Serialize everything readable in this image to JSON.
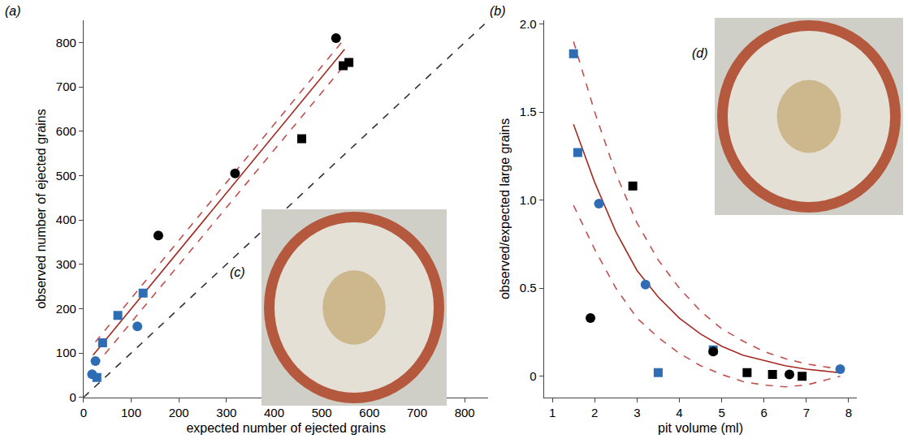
{
  "chart_data": [
    {
      "type": "scatter",
      "panel_label": "(a)",
      "inset_label": "(c)",
      "x_label": "expected number of ejected grains",
      "y_label": "observed number of ejected grains",
      "xlim": [
        0,
        850
      ],
      "ylim": [
        0,
        850
      ],
      "xticks": [
        0,
        100,
        200,
        300,
        400,
        500,
        600,
        700,
        800
      ],
      "yticks": [
        0,
        100,
        200,
        300,
        400,
        500,
        600,
        700,
        800
      ],
      "grid": false,
      "series": [
        {
          "type": "line",
          "line_style": "dashed",
          "color": "#333333",
          "x": [
            0,
            850
          ],
          "values": [
            0,
            850
          ]
        },
        {
          "type": "line",
          "line_style": "dashed",
          "color": "#c0504d",
          "x": [
            25,
            545
          ],
          "values": [
            125,
            805
          ]
        },
        {
          "type": "line",
          "line_style": "dashed",
          "color": "#c0504d",
          "x": [
            25,
            560
          ],
          "values": [
            72,
            765
          ]
        },
        {
          "type": "line",
          "line_style": "solid",
          "color": "#a52a22",
          "x": [
            20,
            548
          ],
          "values": [
            95,
            785
          ]
        },
        {
          "type": "scatter",
          "marker": "circle",
          "color": "#000000",
          "x": [
            157,
            318,
            530
          ],
          "values": [
            365,
            505,
            810
          ]
        },
        {
          "type": "scatter",
          "marker": "square",
          "color": "#000000",
          "x": [
            458,
            545,
            557
          ],
          "values": [
            583,
            748,
            755
          ]
        },
        {
          "type": "scatter",
          "marker": "circle",
          "color": "#2e6db4",
          "x": [
            18,
            25,
            113
          ],
          "values": [
            52,
            82,
            160
          ]
        },
        {
          "type": "scatter",
          "marker": "square",
          "color": "#2e6db4",
          "x": [
            28,
            40,
            72,
            125
          ],
          "values": [
            45,
            123,
            185,
            235
          ]
        }
      ]
    },
    {
      "type": "scatter",
      "panel_label": "(b)",
      "inset_label": "(d)",
      "x_label": "pit volume (ml)",
      "y_label": "observed/expected large grains",
      "xlim": [
        0.8,
        8.2
      ],
      "ylim": [
        -0.12,
        2.02
      ],
      "xticks": [
        1,
        2,
        3,
        4,
        5,
        6,
        7,
        8
      ],
      "yticks": [
        0,
        0.5,
        {
          "value": 1,
          "label": "1.0"
        },
        1.5,
        {
          "value": 2,
          "label": "2.0"
        }
      ],
      "grid": false,
      "series": [
        {
          "type": "line",
          "line_style": "dashed",
          "color": "#c0504d",
          "x": [
            1.5,
            2,
            2.5,
            3,
            3.5,
            4,
            4.5,
            5,
            5.5,
            6,
            6.5,
            7,
            7.8
          ],
          "values": [
            1.9,
            1.5,
            1.15,
            0.87,
            0.66,
            0.5,
            0.37,
            0.27,
            0.2,
            0.14,
            0.1,
            0.07,
            0.04
          ]
        },
        {
          "type": "line",
          "line_style": "dashed",
          "color": "#c0504d",
          "x": [
            1.5,
            2,
            2.5,
            3,
            3.5,
            4,
            4.5,
            5,
            5.5,
            6,
            6.5,
            7,
            7.8
          ],
          "values": [
            0.97,
            0.72,
            0.5,
            0.33,
            0.22,
            0.13,
            0.06,
            0.01,
            -0.03,
            -0.05,
            -0.06,
            -0.05,
            0
          ]
        },
        {
          "type": "line",
          "line_style": "solid",
          "color": "#a52a22",
          "x": [
            1.5,
            2,
            2.5,
            3,
            3.5,
            4,
            4.5,
            5,
            5.5,
            6,
            6.5,
            7,
            7.8
          ],
          "values": [
            1.43,
            1.1,
            0.82,
            0.6,
            0.45,
            0.33,
            0.24,
            0.17,
            0.12,
            0.09,
            0.06,
            0.04,
            0.02
          ]
        },
        {
          "type": "scatter",
          "marker": "square",
          "color": "#2e6db4",
          "x": [
            1.5,
            1.6,
            3.5,
            4.8
          ],
          "values": [
            1.83,
            1.27,
            0.02,
            0.15
          ]
        },
        {
          "type": "scatter",
          "marker": "circle",
          "color": "#2e6db4",
          "x": [
            2.1,
            3.2,
            7.8
          ],
          "values": [
            0.98,
            0.52,
            0.04
          ]
        },
        {
          "type": "scatter",
          "marker": "square",
          "color": "#000000",
          "x": [
            2.9,
            5.6,
            6.2,
            6.9
          ],
          "values": [
            1.08,
            0.02,
            0.01,
            0
          ]
        },
        {
          "type": "scatter",
          "marker": "circle",
          "color": "#000000",
          "x": [
            1.9,
            4.8,
            6.6
          ],
          "values": [
            0.33,
            0.14,
            0.01
          ]
        }
      ]
    }
  ]
}
